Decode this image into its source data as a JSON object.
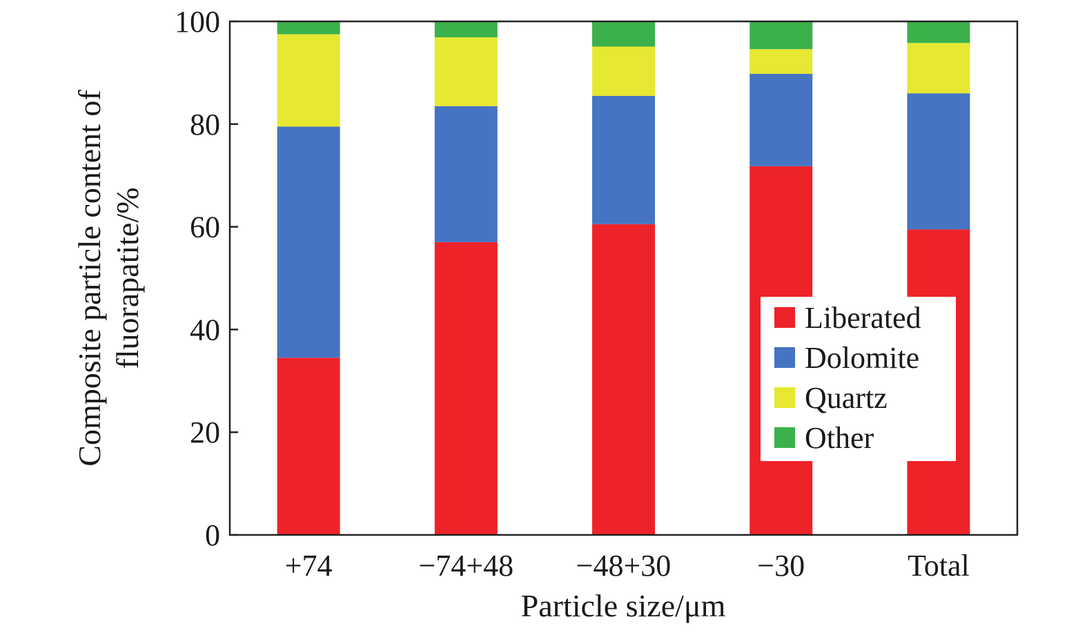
{
  "chart_data": {
    "type": "bar",
    "stacked": true,
    "categories": [
      "+74",
      "−74+48",
      "−48+30",
      "−30",
      "Total"
    ],
    "series": [
      {
        "name": "Liberated",
        "color": "#ee2329",
        "values": [
          34.5,
          57.0,
          60.5,
          71.8,
          59.5
        ]
      },
      {
        "name": "Dolomite",
        "color": "#4574c2",
        "values": [
          45.0,
          26.5,
          25.0,
          18.0,
          26.5
        ]
      },
      {
        "name": "Quartz",
        "color": "#e6e831",
        "values": [
          18.0,
          13.4,
          9.6,
          4.8,
          9.8
        ]
      },
      {
        "name": "Other",
        "color": "#3bb14c",
        "values": [
          2.5,
          3.1,
          4.9,
          5.4,
          4.2
        ]
      }
    ],
    "title": "",
    "xlabel": "Particle size/μm",
    "ylabel_lines": [
      "Composite particle content of",
      "fluorapatite/%"
    ],
    "ylim": [
      0,
      100
    ],
    "yticks": [
      0,
      20,
      40,
      60,
      80,
      100
    ],
    "grid": false,
    "legend_position": "inside-lower-right"
  }
}
